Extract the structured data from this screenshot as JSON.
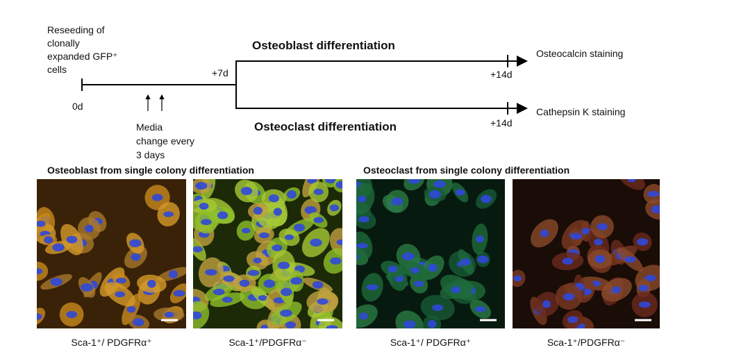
{
  "timeline": {
    "start_note": [
      "Reseeding of",
      "clonally",
      "expanded GFP⁺",
      "cells"
    ],
    "start_day": "0d",
    "split_day": "+7d",
    "media_note": [
      "Media",
      "change every",
      "3 days"
    ],
    "upper_branch": {
      "title": "Osteoblast differentiation",
      "end_day": "+14d",
      "readout": "Osteocalcin staining"
    },
    "lower_branch": {
      "title": "Osteoclast differentiation",
      "end_day": "+14d",
      "readout": "Cathepsin K staining"
    }
  },
  "panels": [
    {
      "title": "Osteoblast from single colony differentiation",
      "images": [
        {
          "label": "Sca-1⁺/ PDGFRα⁺"
        },
        {
          "label": "Sca-1⁺/PDGFRα⁻"
        }
      ]
    },
    {
      "title": "Osteoclast from single colony differentiation",
      "images": [
        {
          "label": "Sca-1⁺/ PDGFRα⁺"
        },
        {
          "label": "Sca-1⁺/PDGFRα⁻"
        }
      ]
    }
  ]
}
